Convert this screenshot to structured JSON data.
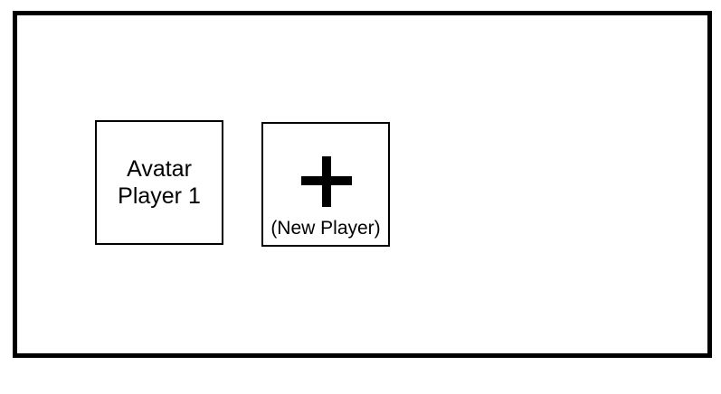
{
  "player_select": {
    "players": [
      {
        "avatar_label": "Avatar\nPlayer 1"
      }
    ],
    "new_player": {
      "icon": "plus-icon",
      "label": "(New Player)"
    }
  },
  "colors": {
    "border": "#000000",
    "background": "#ffffff"
  }
}
